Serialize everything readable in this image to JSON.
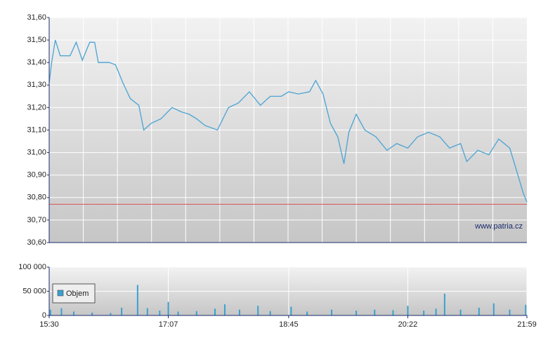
{
  "chart_data": [
    {
      "type": "line",
      "x": [
        "15:30",
        "15:32",
        "15:35",
        "15:39",
        "15:47",
        "15:52",
        "15:57",
        "16:03",
        "16:07",
        "16:10",
        "16:19",
        "16:24",
        "16:30",
        "16:36",
        "16:43",
        "16:47",
        "16:53",
        "17:01",
        "17:10",
        "17:18",
        "17:24",
        "17:30",
        "17:37",
        "17:47",
        "17:56",
        "18:04",
        "18:13",
        "18:22",
        "18:30",
        "18:39",
        "18:45",
        "18:53",
        "19:02",
        "19:07",
        "19:13",
        "19:19",
        "19:25",
        "19:30",
        "19:34",
        "19:40",
        "19:47",
        "19:56",
        "20:05",
        "20:13",
        "20:22",
        "20:30",
        "20:39",
        "20:48",
        "20:56",
        "21:05",
        "21:10",
        "21:19",
        "21:28",
        "21:36",
        "21:45",
        "21:50",
        "21:56",
        "21:59"
      ],
      "series": [
        {
          "color": "#4aa3d4",
          "values": [
            31.31,
            31.4,
            31.5,
            31.43,
            31.43,
            31.49,
            31.41,
            31.49,
            31.49,
            31.4,
            31.4,
            31.39,
            31.31,
            31.24,
            31.21,
            31.1,
            31.13,
            31.15,
            31.2,
            31.18,
            31.17,
            31.15,
            31.12,
            31.1,
            31.2,
            31.22,
            31.27,
            31.21,
            31.25,
            31.25,
            31.27,
            31.26,
            31.27,
            31.32,
            31.26,
            31.13,
            31.07,
            30.95,
            31.09,
            31.17,
            31.1,
            31.07,
            31.01,
            31.04,
            31.02,
            31.07,
            31.09,
            31.07,
            31.02,
            31.04,
            30.96,
            31.01,
            30.99,
            31.06,
            31.02,
            30.93,
            30.82,
            30.78
          ]
        }
      ],
      "reference_line": {
        "value": 30.77,
        "color": "#d9534f"
      },
      "xlim": [
        "15:30",
        "21:59"
      ],
      "ylim": [
        30.6,
        31.6
      ],
      "yticks": [
        {
          "value": 30.6,
          "label": "30,60"
        },
        {
          "value": 30.7,
          "label": "30,70"
        },
        {
          "value": 30.8,
          "label": "30,80"
        },
        {
          "value": 30.9,
          "label": "30,90"
        },
        {
          "value": 31.0,
          "label": "31,00"
        },
        {
          "value": 31.1,
          "label": "31,10"
        },
        {
          "value": 31.2,
          "label": "31,20"
        },
        {
          "value": 31.3,
          "label": "31,30"
        },
        {
          "value": 31.4,
          "label": "31,40"
        },
        {
          "value": 31.5,
          "label": "31,50"
        },
        {
          "value": 31.6,
          "label": "31,60"
        }
      ],
      "annotation": "www.patria.cz",
      "grid": true
    },
    {
      "type": "bar",
      "x": [
        "15:31",
        "15:40",
        "15:50",
        "16:05",
        "16:20",
        "16:29",
        "16:42",
        "16:50",
        "17:00",
        "17:07",
        "17:15",
        "17:30",
        "17:45",
        "17:53",
        "18:05",
        "18:20",
        "18:30",
        "18:47",
        "19:00",
        "19:20",
        "19:40",
        "19:55",
        "20:10",
        "20:22",
        "20:35",
        "20:45",
        "20:52",
        "21:05",
        "21:20",
        "21:32",
        "21:45",
        "21:58"
      ],
      "series": [
        {
          "name": "Objem",
          "color": "#3ca0cf",
          "values": [
            12000,
            15000,
            8000,
            6000,
            5000,
            16000,
            63000,
            15000,
            10000,
            28000,
            8000,
            9000,
            14000,
            23000,
            12000,
            20000,
            9000,
            18000,
            8000,
            12000,
            10000,
            12000,
            11000,
            20000,
            10000,
            14000,
            45000,
            12000,
            16000,
            25000,
            12000,
            22000
          ]
        }
      ],
      "xlim": [
        "15:30",
        "21:59"
      ],
      "xticks": [
        "15:30",
        "17:07",
        "18:45",
        "20:22",
        "21:59"
      ],
      "ylim": [
        0,
        100000
      ],
      "yticks": [
        0,
        {
          "value": 50000,
          "label": "50 000"
        },
        {
          "value": 100000,
          "label": "100 000"
        }
      ],
      "grid": true
    }
  ]
}
